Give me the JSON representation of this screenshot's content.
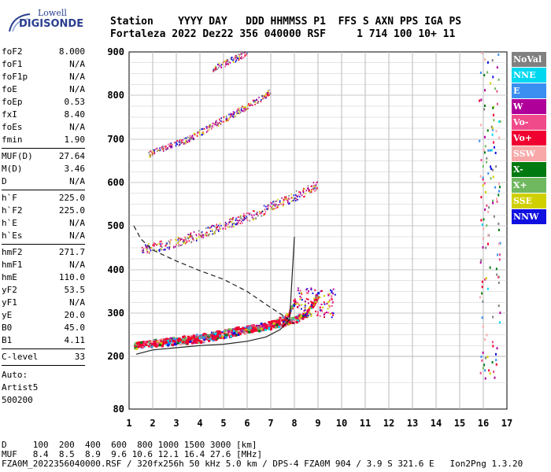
{
  "logo": {
    "line1": "Lowell",
    "line2": "DIGISONDE"
  },
  "header": {
    "columns": "Station    YYYY DAY   DDD HHMMSS P1  FFS S AXN PPS IGA PS",
    "values": "Fortaleza 2022 Dez22 356 040000 RSF     1 714 100 10+ 11"
  },
  "params": {
    "group1": [
      {
        "k": "foF2",
        "v": "8.000"
      },
      {
        "k": "foF1",
        "v": "N/A"
      },
      {
        "k": "foF1p",
        "v": "N/A"
      },
      {
        "k": "foE",
        "v": "N/A"
      },
      {
        "k": "foEp",
        "v": "0.53"
      },
      {
        "k": "fxI",
        "v": "8.40"
      },
      {
        "k": "foEs",
        "v": "N/A"
      },
      {
        "k": "fmin",
        "v": "1.90"
      }
    ],
    "group2": [
      {
        "k": "MUF(D)",
        "v": "27.64"
      },
      {
        "k": "M(D)",
        "v": "3.46"
      },
      {
        "k": "D",
        "v": "N/A"
      }
    ],
    "group3": [
      {
        "k": "h`F",
        "v": "225.0"
      },
      {
        "k": "h`F2",
        "v": "225.0"
      },
      {
        "k": "h`E",
        "v": "N/A"
      },
      {
        "k": "h`Es",
        "v": "N/A"
      }
    ],
    "group4": [
      {
        "k": "hmF2",
        "v": "271.7"
      },
      {
        "k": "hmF1",
        "v": "N/A"
      },
      {
        "k": "hmE",
        "v": "110.0"
      },
      {
        "k": "yF2",
        "v": "53.5"
      },
      {
        "k": "yF1",
        "v": "N/A"
      },
      {
        "k": "yE",
        "v": "20.0"
      },
      {
        "k": "B0",
        "v": "45.0"
      },
      {
        "k": "B1",
        "v": "4.11"
      }
    ],
    "group5": [
      {
        "k": "C-level",
        "v": "33"
      }
    ],
    "auto_label": "Auto:",
    "auto_lines": [
      "Artist5",
      "500200"
    ]
  },
  "legend": [
    {
      "label": "NoVal",
      "color": "#808080"
    },
    {
      "label": "NNE",
      "color": "#00d8f0"
    },
    {
      "label": "E",
      "color": "#3a8ff0"
    },
    {
      "label": "W",
      "color": "#b0009a"
    },
    {
      "label": "Vo-",
      "color": "#f04a8a"
    },
    {
      "label": "Vo+",
      "color": "#f00030"
    },
    {
      "label": "SSW",
      "color": "#f8a8a8"
    },
    {
      "label": "X-",
      "color": "#007a10"
    },
    {
      "label": "X+",
      "color": "#70b860"
    },
    {
      "label": "SSE",
      "color": "#d0d000"
    },
    {
      "label": "NNW",
      "color": "#1010e0"
    }
  ],
  "chart_data": {
    "type": "scatter",
    "title": "",
    "xlabel": "",
    "ylabel": "",
    "xlim": [
      1,
      17
    ],
    "ylim": [
      80,
      900
    ],
    "x_ticks": [
      "1",
      "2",
      "3",
      "4",
      "5",
      "6",
      "7",
      "8",
      "9",
      "10",
      "11",
      "12",
      "13",
      "14",
      "15",
      "16",
      "17"
    ],
    "y_ticks": [
      "80",
      "200",
      "300",
      "400",
      "500",
      "600",
      "700",
      "800",
      "900"
    ],
    "grid": true,
    "curves": {
      "profile_solid": {
        "x": [
          1.3,
          2,
          3,
          4,
          5,
          6,
          6.8,
          7.4,
          7.8,
          8.0
        ],
        "y": [
          205,
          215,
          220,
          225,
          228,
          235,
          245,
          262,
          285,
          475
        ]
      },
      "profile_dashed": {
        "x": [
          1.2,
          1.5,
          2,
          3,
          4,
          5,
          6,
          6.8,
          7.5,
          8.0
        ],
        "y": [
          500,
          470,
          445,
          420,
          398,
          378,
          350,
          320,
          295,
          275
        ]
      }
    },
    "ionogram_traces": [
      {
        "name": "F2 o-trace",
        "x": [
          1.2,
          2,
          3,
          4,
          5,
          6,
          7,
          7.6,
          8.0
        ],
        "y": [
          225,
          232,
          238,
          245,
          255,
          265,
          275,
          290,
          330
        ]
      },
      {
        "name": "F2 x-trace",
        "x": [
          1.8,
          3,
          4,
          5,
          6,
          7,
          8,
          8.5,
          9.0
        ],
        "y": [
          228,
          235,
          240,
          250,
          262,
          270,
          285,
          300,
          345
        ]
      },
      {
        "name": "2F echo",
        "x": [
          1.5,
          2.5,
          3.5,
          4.5,
          5.5,
          6.5,
          7.5,
          8.5,
          9.0
        ],
        "y": [
          445,
          455,
          470,
          490,
          510,
          530,
          555,
          580,
          595
        ]
      },
      {
        "name": "3F echo",
        "x": [
          1.8,
          2.5,
          3.5,
          4.5,
          5.5,
          6.5,
          7.0
        ],
        "y": [
          665,
          680,
          700,
          730,
          760,
          790,
          810
        ]
      },
      {
        "name": "upper echo",
        "x": [
          4.5,
          5.5,
          6.0
        ],
        "y": [
          860,
          885,
          898
        ]
      }
    ]
  },
  "footer": {
    "line1": "D     100  200  400  600  800 1000 1500 3000 [km]",
    "line2": "MUF   8.4  8.5  8.9  9.6 10.6 12.1 16.4 27.6 [MHz]",
    "line3": "FZA0M_2022356040000.RSF / 320fx256h 50 kHz 5.0 km / DPS-4 FZA0M 904 / 3.9 S 321.6 E   Ion2Png 1.3.20"
  }
}
